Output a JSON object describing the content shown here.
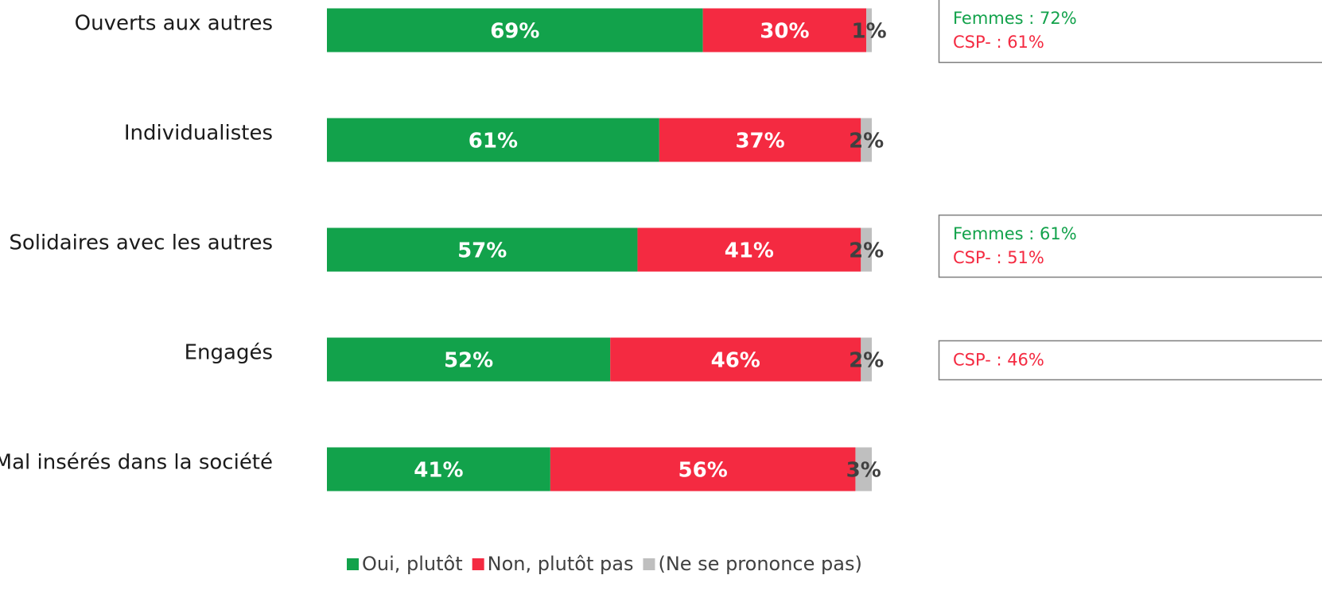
{
  "chart_data": {
    "type": "bar",
    "orientation": "horizontal",
    "stacked": true,
    "categories": [
      "Ouverts aux autres",
      "Individualistes",
      "Solidaires avec les autres",
      "Engagés",
      "Mal insérés dans la société"
    ],
    "series": [
      {
        "name": "Oui, plutôt",
        "color": "#12a24b",
        "values": [
          69,
          61,
          57,
          52,
          41
        ],
        "value_labels": [
          "69%",
          "61%",
          "57%",
          "52%",
          "41%"
        ]
      },
      {
        "name": "Non, plutôt pas",
        "color": "#f42a41",
        "values": [
          30,
          37,
          41,
          46,
          56
        ],
        "value_labels": [
          "30%",
          "37%",
          "41%",
          "46%",
          "56%"
        ]
      },
      {
        "name": "(Ne se prononce pas)",
        "color": "#bfbfbf",
        "values": [
          1,
          2,
          2,
          2,
          3
        ],
        "value_labels": [
          "1%",
          "2%",
          "2%",
          "2%",
          "3%"
        ]
      }
    ],
    "legend": "bottom",
    "annotations": [
      [
        {
          "text": "Femmes : 72%",
          "color": "#12a24b"
        },
        {
          "text": "CSP- : 61%",
          "color": "#f42a41"
        }
      ],
      [
        {
          "text": "Femmes : 61%",
          "color": "#12a24b"
        },
        {
          "text": "CSP- : 51%",
          "color": "#f42a41"
        }
      ],
      [
        {
          "text": "CSP- : 46%",
          "color": "#f42a41"
        }
      ]
    ]
  }
}
